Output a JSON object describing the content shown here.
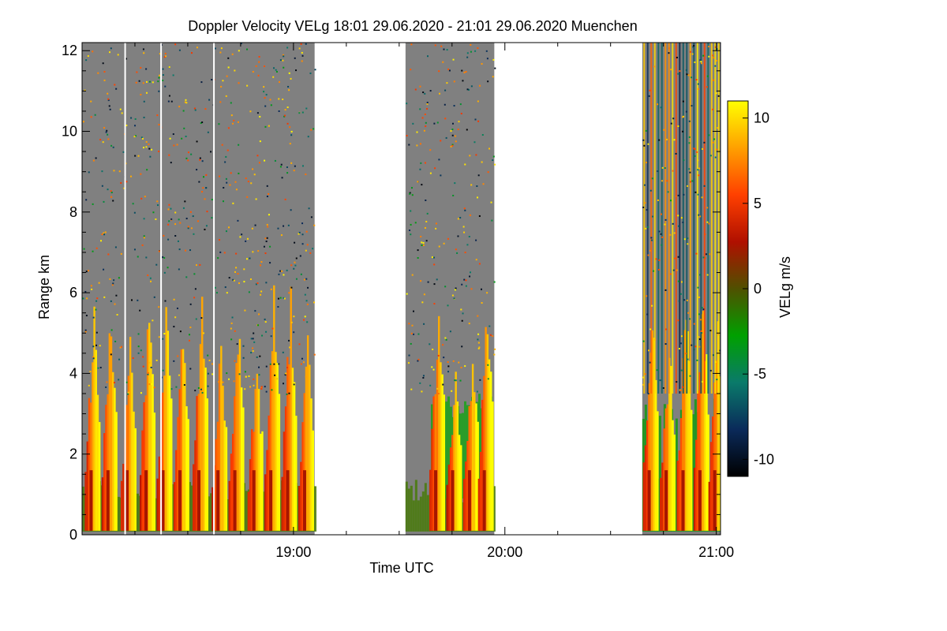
{
  "chart_data": {
    "type": "heatmap",
    "title": "Doppler Velocity VELg   18:01 29.06.2020 - 21:01 29.06.2020 Muenchen",
    "xlabel": "Time UTC",
    "ylabel": "Range km",
    "colorbar_label": "VELg m/s",
    "xlim_hours": [
      18.0,
      21.02
    ],
    "ylim_km": [
      0,
      12.2
    ],
    "x_ticks": [
      {
        "value": 19.0,
        "label": "19:00"
      },
      {
        "value": 20.0,
        "label": "20:00"
      },
      {
        "value": 21.0,
        "label": "21:00"
      }
    ],
    "y_ticks": [
      {
        "value": 0,
        "label": "0"
      },
      {
        "value": 2,
        "label": "2"
      },
      {
        "value": 4,
        "label": "4"
      },
      {
        "value": 6,
        "label": "6"
      },
      {
        "value": 8,
        "label": "8"
      },
      {
        "value": 10,
        "label": "10"
      },
      {
        "value": 12,
        "label": "12"
      }
    ],
    "colorbar": {
      "min": -11,
      "max": 11,
      "ticks": [
        {
          "value": 10,
          "label": "10"
        },
        {
          "value": 5,
          "label": "5"
        },
        {
          "value": 0,
          "label": "0"
        },
        {
          "value": -5,
          "label": "-5"
        },
        {
          "value": -10,
          "label": "-10"
        }
      ],
      "colors": [
        "#000000",
        "#0a2a5a",
        "#0a7a6a",
        "#00a000",
        "#505000",
        "#b01000",
        "#ff4000",
        "#ffa000",
        "#ffff00"
      ]
    },
    "data_segments_hours": [
      {
        "start": 18.0,
        "end": 19.1
      },
      {
        "start": 19.53,
        "end": 19.95
      },
      {
        "start": 20.65,
        "end": 21.02
      }
    ],
    "missing_data_gaps_hours": [
      18.2,
      18.37,
      18.62
    ],
    "precip_sweeps_hours": [
      18.05,
      18.13,
      18.22,
      18.31,
      18.39,
      18.47,
      18.56,
      18.65,
      18.73,
      18.82,
      18.9,
      18.98,
      19.06,
      19.68,
      19.76,
      19.84,
      19.91,
      20.69,
      20.77,
      20.85,
      20.93,
      21.0
    ],
    "updraft_top_km": 3.5
  }
}
